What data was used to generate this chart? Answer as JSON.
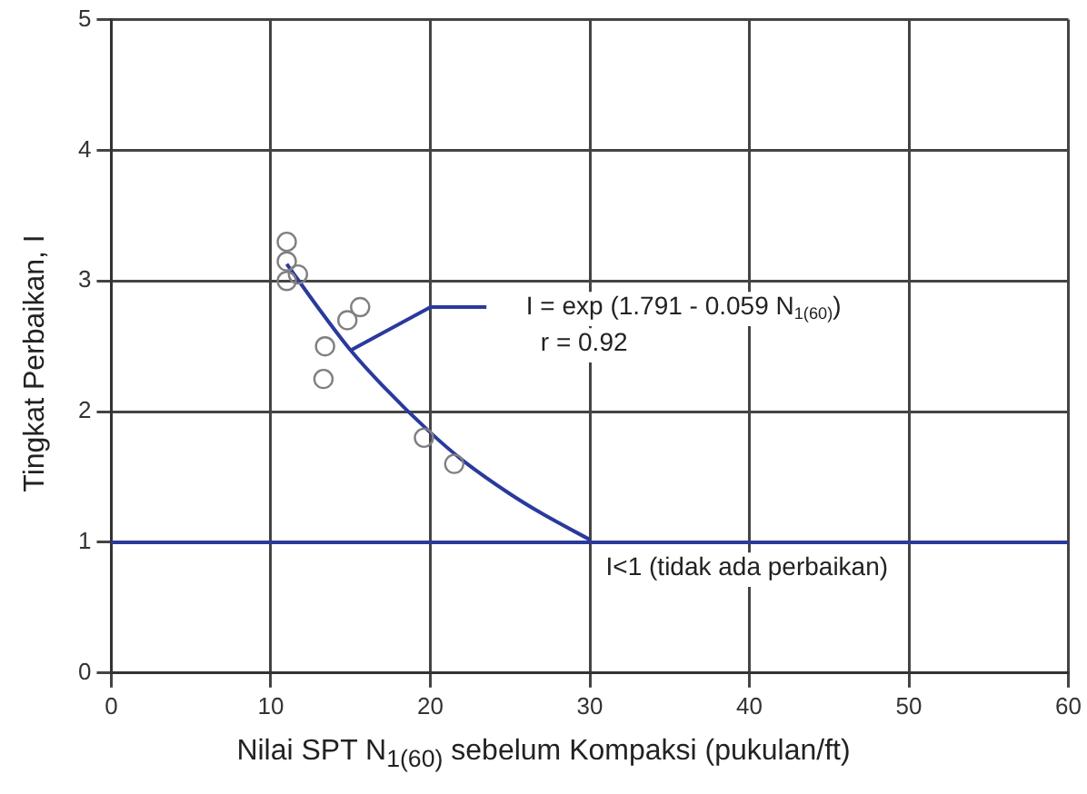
{
  "chart_data": {
    "type": "scatter",
    "xlabel": "Nilai SPT N$_{1(60)}$ sebelum Kompaksi (pukulan/ft)",
    "ylabel": "Tingkat Perbaikan, I",
    "x": [
      11,
      11,
      11,
      11.7,
      13.4,
      13.3,
      14.8,
      15.6,
      19.6,
      21.5
    ],
    "series": [
      {
        "color": "#808080",
        "marker": "circle",
        "values": [
          3.3,
          3.15,
          3.0,
          3.05,
          2.5,
          2.25,
          2.7,
          2.8,
          1.8,
          1.6
        ]
      },
      {
        "type": "line",
        "color": "#2a3a9c",
        "x": [
          11,
          13,
          15,
          17,
          20,
          22,
          25,
          27,
          30
        ],
        "values": [
          3.13,
          2.79,
          2.47,
          2.2,
          1.84,
          1.63,
          1.37,
          1.22,
          1.02
        ]
      }
    ],
    "xlim": [
      0,
      60
    ],
    "xticks": [
      0,
      10,
      20,
      30,
      40,
      50,
      60
    ],
    "ylim": [
      0,
      5
    ],
    "yticks": [
      0,
      1,
      2,
      3,
      4,
      5
    ],
    "ref_lines": [
      {
        "axis": "y",
        "value": 1,
        "label": "I<1 (tidak ada perbaikan)",
        "color": "#2a3a9c"
      }
    ],
    "annotations": [
      "I = exp (1.791 - 0.059 N$_{1(60)}$)",
      "r = 0.92"
    ],
    "grid": true
  }
}
